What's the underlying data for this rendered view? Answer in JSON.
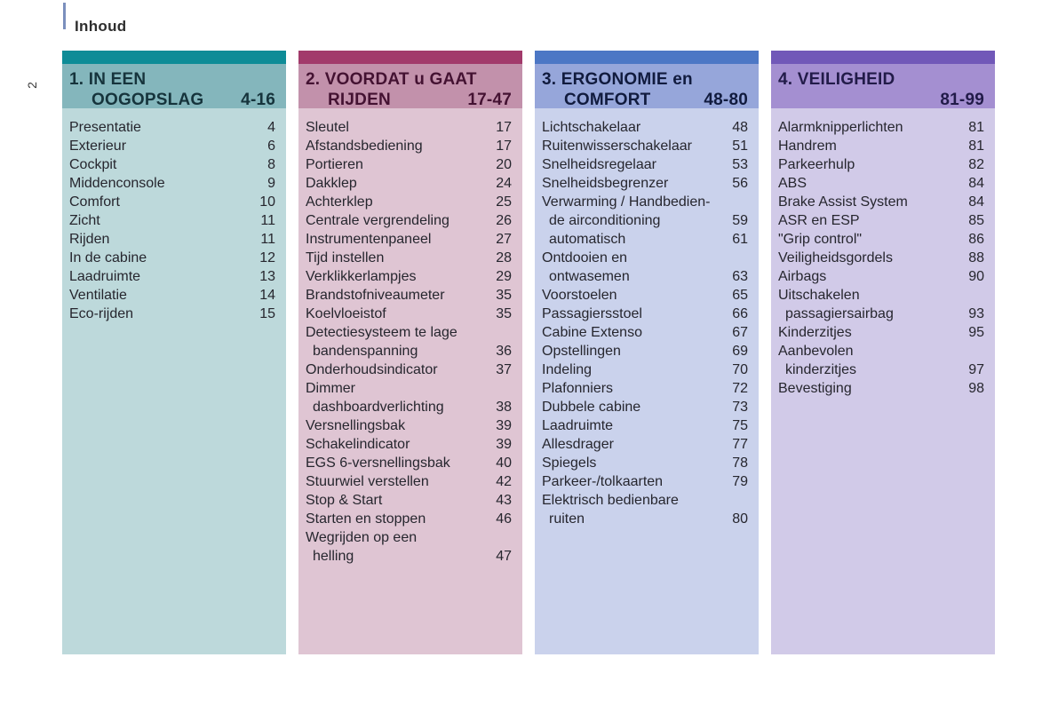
{
  "header": {
    "title": "Inhoud",
    "side_page_number": "2",
    "accent_color": "#7b8fbd"
  },
  "columns": [
    {
      "title_line1": "1. IN EEN",
      "title_line2": "OOGOPSLAG",
      "page_range": "4-16",
      "colors": {
        "bar": "#0e8c97",
        "band": "#84b6bc",
        "body": "#bdd9db",
        "title": "#16343c"
      },
      "items": [
        {
          "label": "Presentatie",
          "page": "4",
          "indent": false
        },
        {
          "label": "Exterieur",
          "page": "6",
          "indent": false
        },
        {
          "label": "Cockpit",
          "page": "8",
          "indent": false
        },
        {
          "label": "Middenconsole",
          "page": "9",
          "indent": false
        },
        {
          "label": "Comfort",
          "page": "10",
          "indent": false
        },
        {
          "label": "Zicht",
          "page": "11",
          "indent": false
        },
        {
          "label": "Rijden",
          "page": "11",
          "indent": false
        },
        {
          "label": "In de cabine",
          "page": "12",
          "indent": false
        },
        {
          "label": "Laadruimte",
          "page": "13",
          "indent": false
        },
        {
          "label": "Ventilatie",
          "page": "14",
          "indent": false
        },
        {
          "label": "Eco-rijden",
          "page": "15",
          "indent": false
        }
      ]
    },
    {
      "title_line1": "2. VOORDAT u GAAT",
      "title_line2": "RIJDEN",
      "page_range": "17-47",
      "colors": {
        "bar": "#a23a6b",
        "band": "#c291ab",
        "body": "#dfc5d3",
        "title": "#441232"
      },
      "items": [
        {
          "label": "Sleutel",
          "page": "17",
          "indent": false
        },
        {
          "label": "Afstandsbediening",
          "page": "17",
          "indent": false
        },
        {
          "label": "Portieren",
          "page": "20",
          "indent": false
        },
        {
          "label": "Dakklep",
          "page": "24",
          "indent": false
        },
        {
          "label": "Achterklep",
          "page": "25",
          "indent": false
        },
        {
          "label": "Centrale vergrendeling",
          "page": "26",
          "indent": false
        },
        {
          "label": "Instrumentenpaneel",
          "page": "27",
          "indent": false
        },
        {
          "label": "Tijd instellen",
          "page": "28",
          "indent": false
        },
        {
          "label": "Verklikkerlampjes",
          "page": "29",
          "indent": false
        },
        {
          "label": "Brandstofniveaumeter",
          "page": "35",
          "indent": false
        },
        {
          "label": "Koelvloeistof",
          "page": "35",
          "indent": false
        },
        {
          "label": "Detectiesysteem te lage",
          "page": "",
          "indent": false
        },
        {
          "label": "bandenspanning",
          "page": "36",
          "indent": true
        },
        {
          "label": "Onderhoudsindicator",
          "page": "37",
          "indent": false
        },
        {
          "label": "Dimmer",
          "page": "",
          "indent": false
        },
        {
          "label": "dashboardverlichting",
          "page": "38",
          "indent": true
        },
        {
          "label": "Versnellingsbak",
          "page": "39",
          "indent": false
        },
        {
          "label": "Schakelindicator",
          "page": "39",
          "indent": false
        },
        {
          "label": "EGS 6-versnellingsbak",
          "page": "40",
          "indent": false
        },
        {
          "label": "Stuurwiel verstellen",
          "page": "42",
          "indent": false
        },
        {
          "label": "Stop & Start",
          "page": "43",
          "indent": false
        },
        {
          "label": "Starten en stoppen",
          "page": "46",
          "indent": false
        },
        {
          "label": "Wegrijden op een",
          "page": "",
          "indent": false
        },
        {
          "label": "helling",
          "page": "47",
          "indent": true
        }
      ]
    },
    {
      "title_line1": "3. ERGONOMIE en",
      "title_line2": "COMFORT",
      "page_range": "48-80",
      "colors": {
        "bar": "#4c77c5",
        "band": "#96a6da",
        "body": "#cad2ec",
        "title": "#111b3e"
      },
      "items": [
        {
          "label": "Lichtschakelaar",
          "page": "48",
          "indent": false
        },
        {
          "label": "Ruitenwisserschakelaar",
          "page": "51",
          "indent": false
        },
        {
          "label": "Snelheidsregelaar",
          "page": "53",
          "indent": false
        },
        {
          "label": "Snelheidsbegrenzer",
          "page": "56",
          "indent": false
        },
        {
          "label": "Verwarming / Handbedien-",
          "page": "",
          "indent": false
        },
        {
          "label": "de airconditioning",
          "page": "59",
          "indent": true
        },
        {
          "label": "automatisch",
          "page": "61",
          "indent": true
        },
        {
          "label": "Ontdooien en",
          "page": "",
          "indent": false
        },
        {
          "label": "ontwasemen",
          "page": "63",
          "indent": true
        },
        {
          "label": "Voorstoelen",
          "page": "65",
          "indent": false
        },
        {
          "label": "Passagiersstoel",
          "page": "66",
          "indent": false
        },
        {
          "label": "Cabine Extenso",
          "page": "67",
          "indent": false
        },
        {
          "label": "Opstellingen",
          "page": "69",
          "indent": false
        },
        {
          "label": "Indeling",
          "page": "70",
          "indent": false
        },
        {
          "label": "Plafonniers",
          "page": "72",
          "indent": false
        },
        {
          "label": "Dubbele cabine",
          "page": "73",
          "indent": false
        },
        {
          "label": "Laadruimte",
          "page": "75",
          "indent": false
        },
        {
          "label": "Allesdrager",
          "page": "77",
          "indent": false
        },
        {
          "label": "Spiegels",
          "page": "78",
          "indent": false
        },
        {
          "label": "Parkeer-/tolkaarten",
          "page": "79",
          "indent": false
        },
        {
          "label": "Elektrisch bedienbare",
          "page": "",
          "indent": false
        },
        {
          "label": "ruiten",
          "page": "80",
          "indent": true
        }
      ]
    },
    {
      "title_line1": "4. VEILIGHEID",
      "title_line2": "",
      "page_range": "81-99",
      "colors": {
        "bar": "#7158b8",
        "band": "#a48fd1",
        "body": "#d1cae8",
        "title": "#221b49"
      },
      "items": [
        {
          "label": "Alarmknipperlichten",
          "page": "81",
          "indent": false
        },
        {
          "label": "Handrem",
          "page": "81",
          "indent": false
        },
        {
          "label": "Parkeerhulp",
          "page": "82",
          "indent": false
        },
        {
          "label": "ABS",
          "page": "84",
          "indent": false
        },
        {
          "label": "Brake Assist System",
          "page": "84",
          "indent": false
        },
        {
          "label": "ASR en ESP",
          "page": "85",
          "indent": false
        },
        {
          "label": "\"Grip control\"",
          "page": "86",
          "indent": false
        },
        {
          "label": "Veiligheidsgordels",
          "page": "88",
          "indent": false
        },
        {
          "label": "Airbags",
          "page": "90",
          "indent": false
        },
        {
          "label": "Uitschakelen",
          "page": "",
          "indent": false
        },
        {
          "label": "passagiersairbag",
          "page": "93",
          "indent": true
        },
        {
          "label": "Kinderzitjes",
          "page": "95",
          "indent": false
        },
        {
          "label": "Aanbevolen",
          "page": "",
          "indent": false
        },
        {
          "label": "kinderzitjes",
          "page": "97",
          "indent": true
        },
        {
          "label": "Bevestiging",
          "page": "98",
          "indent": false
        }
      ]
    }
  ]
}
